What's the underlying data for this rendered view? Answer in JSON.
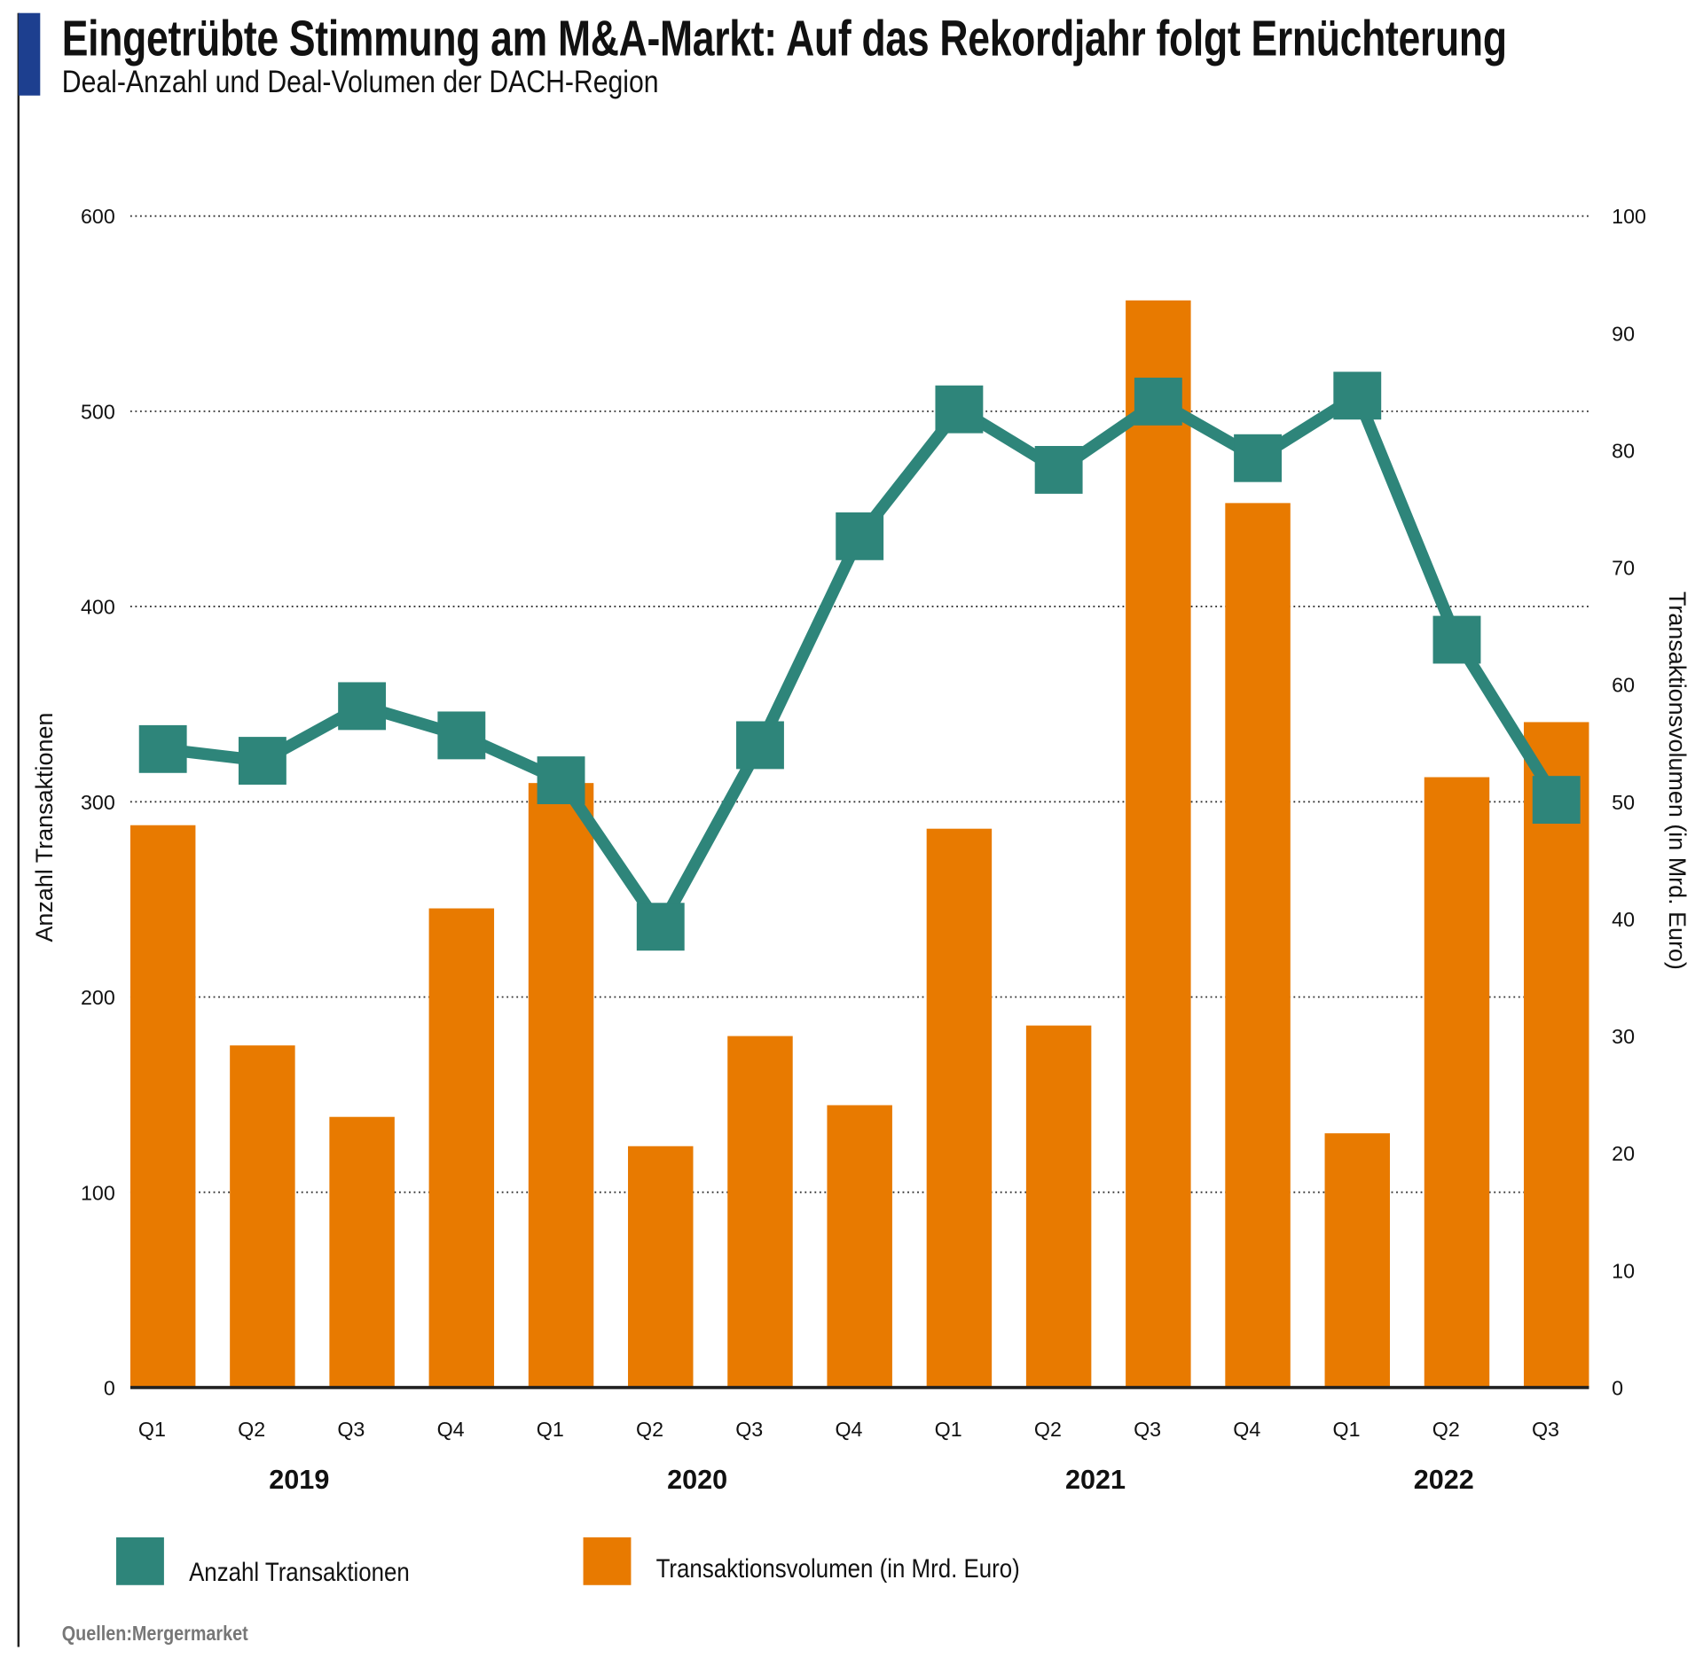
{
  "header": {
    "title": "Eingetrübte Stimmung am M&A-Markt: Auf das Rekordjahr folgt Ernüchterung",
    "subtitle": "Deal-Anzahl und Deal-Volumen der DACH-Region"
  },
  "colors": {
    "accent": "#1d3f8f",
    "line": "#2e857a",
    "bar": "#e87a00"
  },
  "chart_data": {
    "type": "bar+line",
    "title": "Eingetrübte Stimmung am M&A-Markt: Auf das Rekordjahr folgt Ernüchterung",
    "subtitle": "Deal-Anzahl und Deal-Volumen der DACH-Region",
    "categories": [
      "Q1",
      "Q2",
      "Q3",
      "Q4",
      "Q1",
      "Q2",
      "Q3",
      "Q4",
      "Q1",
      "Q2",
      "Q3",
      "Q4",
      "Q1",
      "Q2",
      "Q3"
    ],
    "year_groups": [
      {
        "label": "2019",
        "from": 0,
        "to": 3
      },
      {
        "label": "2020",
        "from": 4,
        "to": 7
      },
      {
        "label": "2021",
        "from": 8,
        "to": 11
      },
      {
        "label": "2022",
        "from": 12,
        "to": 14
      }
    ],
    "ylabel_left": "Anzahl Transaktionen",
    "ylabel_right": "Transaktionsvolumen (in Mrd. Euro)",
    "ylim_left": [
      0,
      600
    ],
    "yticks_left": [
      0,
      100,
      200,
      300,
      400,
      500,
      600
    ],
    "ylim_right": [
      0,
      100
    ],
    "yticks_right": [
      0,
      10,
      20,
      30,
      40,
      50,
      60,
      70,
      80,
      90,
      100
    ],
    "grid": "horizontal dotted",
    "legend_position": "bottom-left",
    "series": [
      {
        "name": "Anzahl Transaktionen",
        "type": "line",
        "axis": "left",
        "color": "#2e857a",
        "values": [
          327,
          321,
          349,
          334,
          311,
          236,
          329,
          436,
          501,
          470,
          505,
          476,
          508,
          383,
          301
        ]
      },
      {
        "name": "Transaktionsvolumen (in Mrd. Euro)",
        "type": "bar",
        "axis": "right",
        "color": "#e87a00",
        "values": [
          48.0,
          29.2,
          23.1,
          40.9,
          51.6,
          20.6,
          30.0,
          24.1,
          47.7,
          30.9,
          92.8,
          75.5,
          21.7,
          52.1,
          56.8
        ]
      }
    ],
    "source": "Quellen:Mergermarket"
  }
}
